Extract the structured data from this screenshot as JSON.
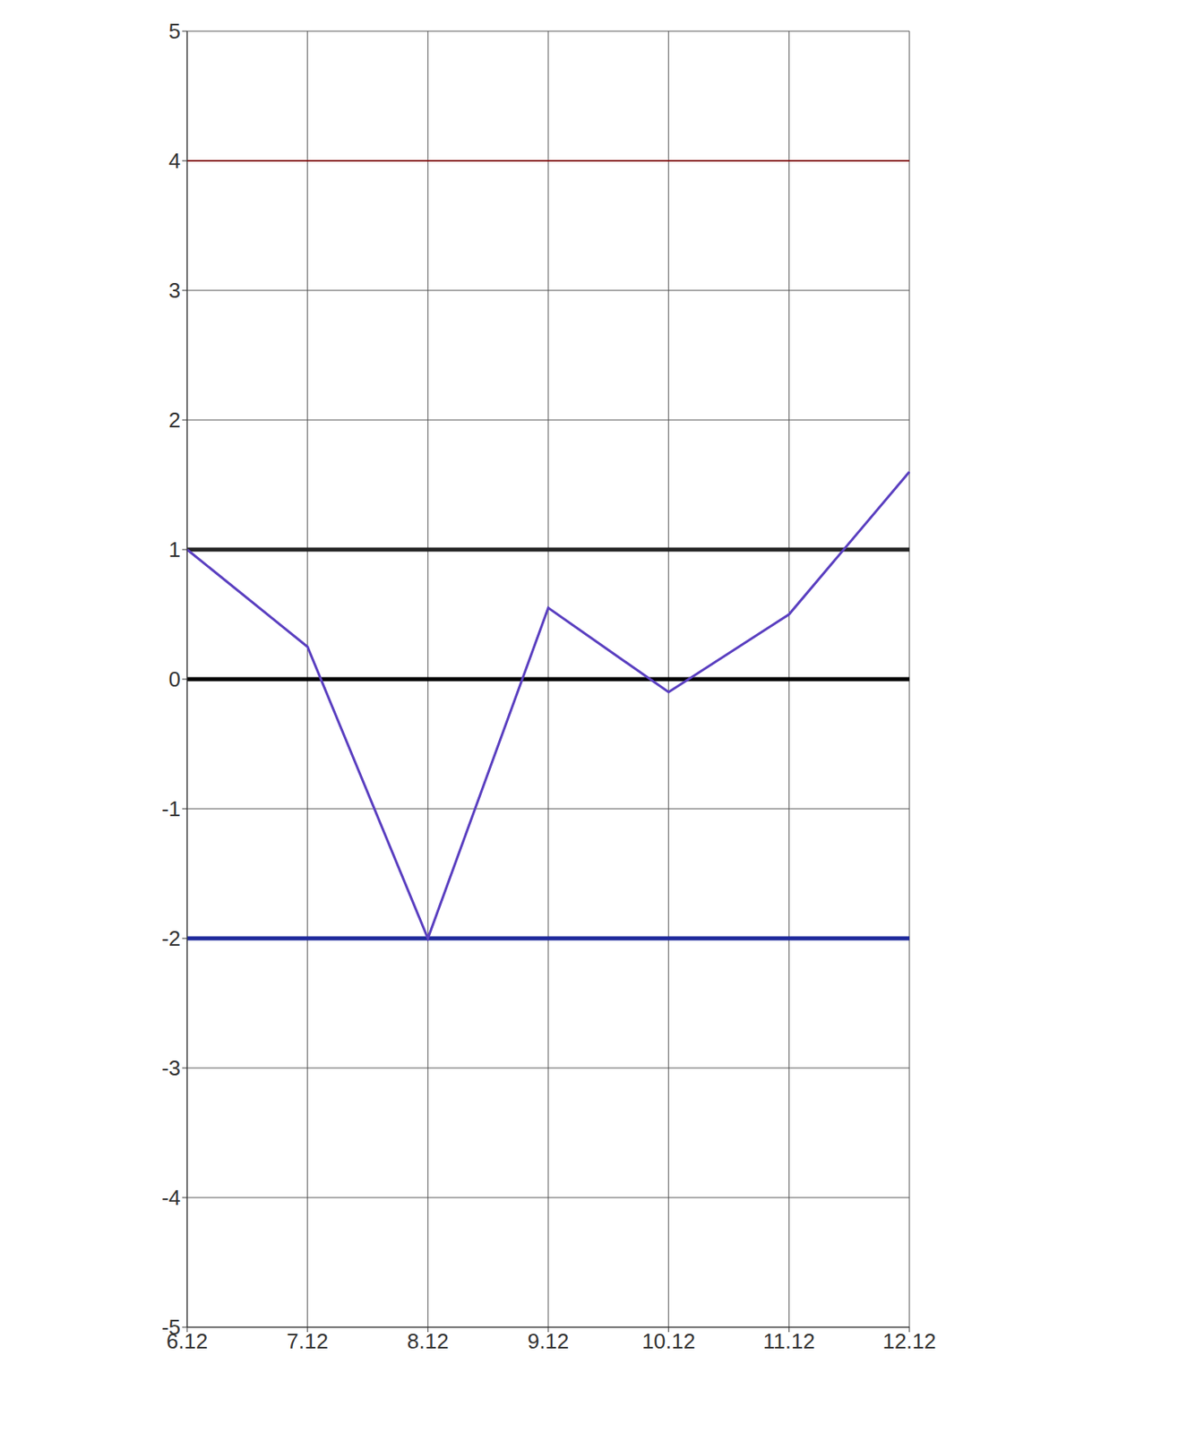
{
  "chart_data": {
    "type": "line",
    "categories": [
      "6.12",
      "7.12",
      "8.12",
      "9.12",
      "10.12",
      "11.12",
      "12.12"
    ],
    "values": [
      1,
      0.25,
      -2,
      0.55,
      -0.1,
      0.5,
      1.6
    ],
    "color": "#5a3fc0",
    "ylim": [
      -5,
      5
    ],
    "yticks": [
      -5,
      -4,
      -3,
      -2,
      -1,
      0,
      1,
      2,
      3,
      4,
      5
    ],
    "grid": true,
    "reference_lines": [
      {
        "value": 4,
        "color": "#8b1a1a"
      },
      {
        "value": 1,
        "color": "#222222"
      },
      {
        "value": 0,
        "color": "#000000"
      },
      {
        "value": -2,
        "color": "#1f2a9c"
      }
    ]
  }
}
